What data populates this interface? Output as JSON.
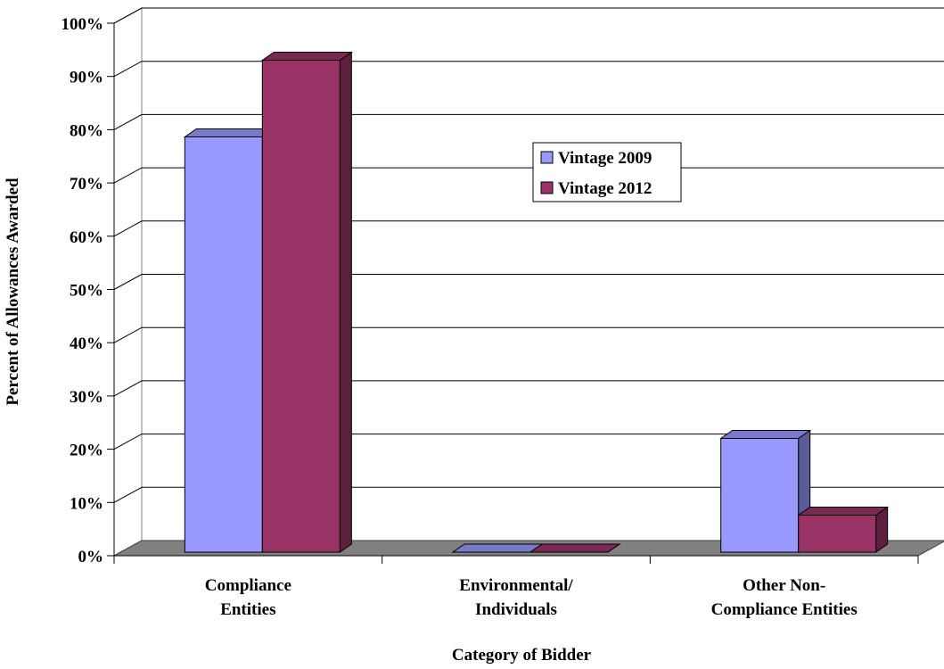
{
  "chart_data": {
    "type": "bar",
    "categories": [
      "Compliance Entities",
      "Environmental/ Individuals",
      "Other Non-Compliance Entities"
    ],
    "category_label_lines": [
      [
        "Compliance",
        "Entities"
      ],
      [
        "Environmental/",
        "Individuals"
      ],
      [
        "Other Non-",
        "Compliance Entities"
      ]
    ],
    "series": [
      {
        "name": "Vintage 2009",
        "values": [
          78.5,
          0,
          21.5
        ],
        "color": "#9999ff",
        "side_color": "#5c5c99",
        "top_color": "#7a7acc"
      },
      {
        "name": "Vintage 2012",
        "values": [
          93,
          0,
          7
        ],
        "color": "#993366",
        "side_color": "#5c1f3d",
        "top_color": "#7a2952"
      }
    ],
    "yticks": [
      "0%",
      "10%",
      "20%",
      "30%",
      "40%",
      "50%",
      "60%",
      "70%",
      "80%",
      "90%",
      "100%"
    ],
    "ylim": [
      0,
      100
    ],
    "xlabel": "Category of Bidder",
    "ylabel": "Percent of Allowances Awarded",
    "grid": true,
    "legend_position": "center",
    "floor_color": "#808080",
    "gridline_color": "#000000"
  }
}
